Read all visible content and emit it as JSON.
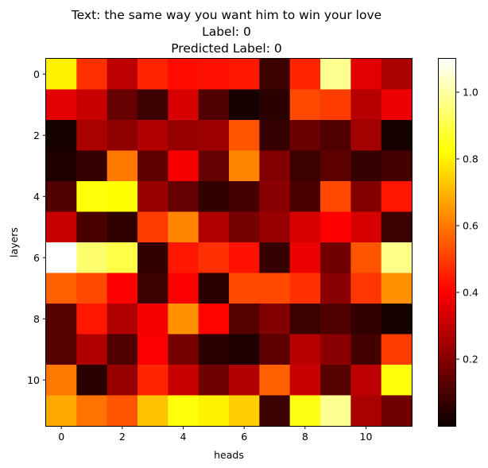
{
  "chart_data": {
    "type": "heatmap",
    "title_lines": [
      "Text: the same way you want him to win your love",
      "Label: 0",
      "Predicted Label: 0"
    ],
    "xlabel": "heads",
    "ylabel": "layers",
    "colormap": "hot",
    "x_ticks": [
      0,
      2,
      4,
      6,
      8,
      10
    ],
    "y_ticks": [
      0,
      2,
      4,
      6,
      8,
      10
    ],
    "n_rows": 12,
    "n_cols": 12,
    "vmin": 0.0,
    "vmax": 1.1,
    "colorbar_ticks": [
      0.2,
      0.4,
      0.6,
      0.8,
      1.0
    ],
    "values": [
      [
        0.8,
        0.48,
        0.28,
        0.46,
        0.42,
        0.43,
        0.44,
        0.08,
        0.46,
        0.98,
        0.34,
        0.25
      ],
      [
        0.34,
        0.3,
        0.14,
        0.08,
        0.32,
        0.11,
        0.02,
        0.05,
        0.52,
        0.5,
        0.27,
        0.36
      ],
      [
        0.02,
        0.25,
        0.21,
        0.26,
        0.22,
        0.23,
        0.54,
        0.07,
        0.15,
        0.11,
        0.24,
        0.02
      ],
      [
        0.03,
        0.07,
        0.6,
        0.13,
        0.37,
        0.14,
        0.62,
        0.19,
        0.08,
        0.13,
        0.07,
        0.09
      ],
      [
        0.11,
        0.83,
        0.82,
        0.22,
        0.14,
        0.06,
        0.09,
        0.2,
        0.1,
        0.52,
        0.19,
        0.44
      ],
      [
        0.3,
        0.1,
        0.06,
        0.5,
        0.62,
        0.26,
        0.17,
        0.22,
        0.32,
        0.4,
        0.32,
        0.08
      ],
      [
        1.1,
        0.94,
        0.9,
        0.06,
        0.44,
        0.48,
        0.43,
        0.07,
        0.36,
        0.16,
        0.54,
        0.97
      ],
      [
        0.56,
        0.52,
        0.4,
        0.08,
        0.38,
        0.05,
        0.52,
        0.52,
        0.48,
        0.2,
        0.49,
        0.64
      ],
      [
        0.12,
        0.44,
        0.26,
        0.37,
        0.64,
        0.41,
        0.12,
        0.19,
        0.08,
        0.11,
        0.06,
        0.02
      ],
      [
        0.12,
        0.26,
        0.11,
        0.38,
        0.17,
        0.05,
        0.03,
        0.13,
        0.27,
        0.2,
        0.09,
        0.5
      ],
      [
        0.6,
        0.05,
        0.22,
        0.46,
        0.3,
        0.16,
        0.26,
        0.56,
        0.3,
        0.12,
        0.28,
        0.83
      ],
      [
        0.68,
        0.59,
        0.54,
        0.72,
        0.83,
        0.8,
        0.74,
        0.08,
        0.84,
        0.98,
        0.25,
        0.16
      ]
    ]
  }
}
